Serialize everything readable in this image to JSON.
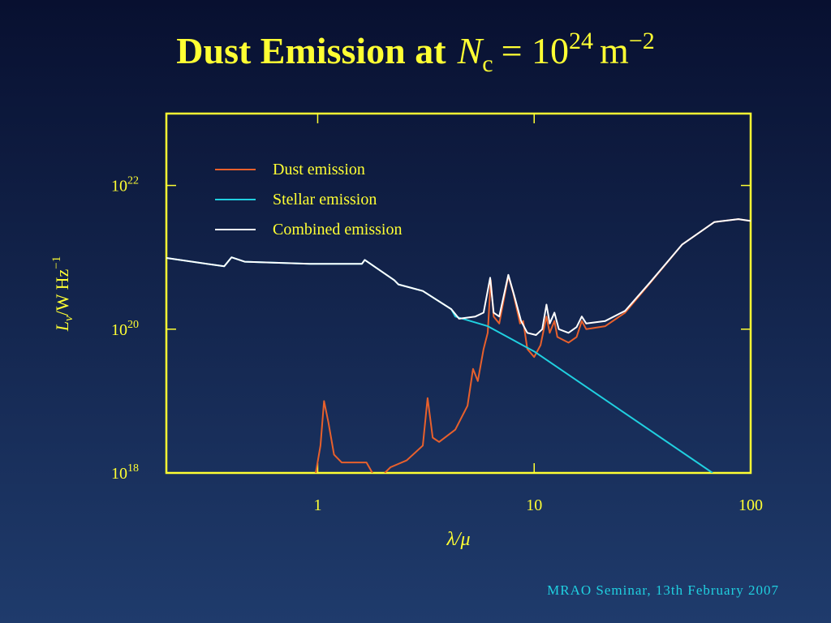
{
  "chart_data": {
    "type": "line",
    "title": {
      "text": "Dust Emission at",
      "symbol": "N",
      "subscript": "c",
      "equals": "= 10",
      "exponent": "24",
      "unit": "m",
      "unit_exponent": "−2"
    },
    "xlabel": "λ/μ",
    "ylabel": {
      "symbol": "L",
      "subscript": "ν",
      "unit": "/W Hz",
      "exponent": "−1"
    },
    "log_x": true,
    "log_y": true,
    "xlim": [
      0.2,
      100
    ],
    "xticks": [
      1,
      10,
      100
    ],
    "ylim": [
      1e+18,
      1e+23
    ],
    "yticks": [
      {
        "value": 1e+18,
        "label": "10",
        "exponent": "18"
      },
      {
        "value": 1e+20,
        "label": "10",
        "exponent": "20"
      },
      {
        "value": 1e+22,
        "label": "10",
        "exponent": "22"
      }
    ],
    "axis_color": "#ffff33",
    "legend": "upper left",
    "series": [
      {
        "name": "Dust emission",
        "color": "#e8602c",
        "x": [
          0.98,
          1.03,
          1.07,
          1.12,
          1.19,
          1.29,
          1.68,
          1.79,
          null,
          2.04,
          2.17,
          2.58,
          3.06,
          3.22,
          3.4,
          3.64,
          4.32,
          4.92,
          5.22,
          5.49,
          5.84,
          6.1,
          6.3,
          6.5,
          6.9,
          7.6,
          8.0,
          8.6,
          8.9,
          9.3,
          10,
          10.7,
          11.4,
          11.8,
          12.4,
          12.8,
          14.4,
          15.7,
          16.6,
          17.4,
          21.3,
          26.3,
          34.1,
          48.2,
          68,
          87.8,
          100
        ],
        "values": [
          1e+18,
          2.4e+18,
          1e+19,
          5.1e+18,
          1.8e+18,
          1.4e+18,
          1.4e+18,
          1e+18,
          null,
          1e+18,
          1.2e+18,
          1.5e+18,
          2.4e+18,
          1.1e+19,
          3.1e+18,
          2.7e+18,
          4e+18,
          8.6e+18,
          2.8e+19,
          1.9e+19,
          5.3e+19,
          8.9e+19,
          4.8e+20,
          1.5e+20,
          1.2e+20,
          5.5e+20,
          3.2e+20,
          1.2e+20,
          1.3e+20,
          5.3e+19,
          4.1e+19,
          6e+19,
          1.5e+20,
          8.9e+19,
          1.3e+20,
          7.8e+19,
          6.5e+19,
          7.8e+19,
          1.3e+20,
          1e+20,
          1.1e+20,
          1.7e+20,
          4.3e+20,
          1.5e+21,
          3.1e+21,
          3.4e+21,
          3.2e+21
        ]
      },
      {
        "name": "Stellar emission",
        "color": "#20d0e0",
        "x": [
          0.2,
          0.37,
          0.4,
          0.46,
          0.92,
          1.6,
          1.65,
          2.26,
          2.36,
          3.06,
          4.14,
          4.32,
          6.1,
          10,
          66.7
        ],
        "values": [
          9.8e+20,
          7.5e+20,
          1e+21,
          8.7e+20,
          8.1e+20,
          8.1e+20,
          9.2e+20,
          4.8e+20,
          4.2e+20,
          3.4e+20,
          1.9e+20,
          1.5e+20,
          1.1e+20,
          4.9e+19,
          1e+18
        ]
      },
      {
        "name": "Combined emission",
        "color": "#ffffff",
        "x": [
          0.2,
          0.37,
          0.4,
          0.46,
          0.92,
          1.6,
          1.65,
          2.26,
          2.36,
          3.06,
          4.14,
          4.5,
          5.35,
          5.84,
          6.26,
          6.5,
          6.9,
          7.6,
          8.1,
          8.7,
          9.3,
          10.2,
          10.9,
          11.4,
          11.8,
          12.4,
          13.0,
          14.4,
          15.7,
          16.6,
          17.4,
          21.3,
          26.3,
          34.1,
          48.2,
          68,
          87.8,
          100
        ],
        "values": [
          9.8e+20,
          7.5e+20,
          1e+21,
          8.7e+20,
          8.1e+20,
          8.1e+20,
          9.2e+20,
          4.8e+20,
          4.2e+20,
          3.4e+20,
          1.9e+20,
          1.4e+20,
          1.5e+20,
          1.7e+20,
          5.2e+20,
          1.7e+20,
          1.5e+20,
          5.7e+20,
          2.9e+20,
          1.3e+20,
          8.9e+19,
          8.3e+19,
          1e+20,
          2.2e+20,
          1.2e+20,
          1.7e+20,
          1e+20,
          8.9e+19,
          1.07e+20,
          1.5e+20,
          1.2e+20,
          1.3e+20,
          1.8e+20,
          4.4e+20,
          1.5e+21,
          3.1e+21,
          3.4e+21,
          3.2e+21
        ]
      }
    ]
  },
  "footer": "MRAO Seminar, 13th February 2007"
}
